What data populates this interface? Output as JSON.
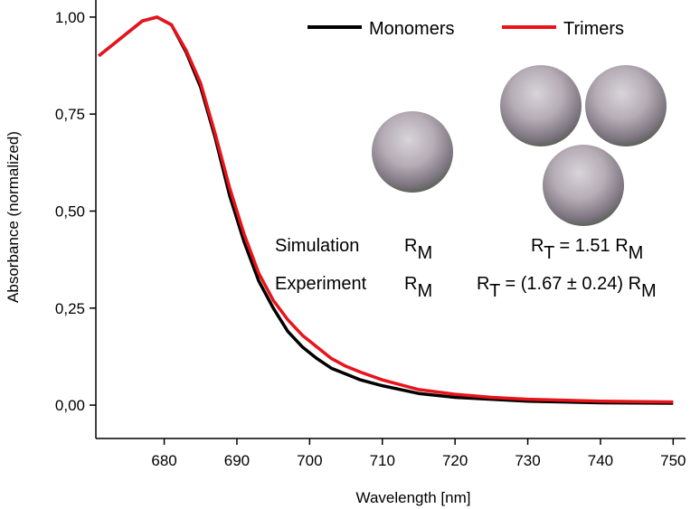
{
  "chart_data": {
    "type": "line",
    "x_label": "Wavelength [nm]",
    "y_label": "Absorbance (normalized)",
    "xlim": [
      670.6,
      751.7
    ],
    "xticks": [
      680,
      690,
      700,
      710,
      720,
      730,
      740,
      750
    ],
    "ylim": [
      -0.086,
      1.044
    ],
    "yticks": [
      {
        "value": 0,
        "label": "0,00"
      },
      {
        "value": 0.25,
        "label": "0,25"
      },
      {
        "value": 0.5,
        "label": "0,50"
      },
      {
        "value": 0.75,
        "label": "0,75"
      },
      {
        "value": 1,
        "label": "1,00"
      }
    ],
    "legend": "top-right",
    "x": [
      671,
      673,
      675,
      677,
      679,
      681,
      683,
      685,
      687,
      689,
      691,
      693,
      695,
      697,
      699,
      701,
      703,
      705,
      707,
      710,
      715,
      720,
      725,
      730,
      740,
      750
    ],
    "series": [
      {
        "name": "Monomers",
        "color": "#000000",
        "values": [
          0.9,
          0.93,
          0.96,
          0.99,
          1.0,
          0.98,
          0.91,
          0.82,
          0.69,
          0.54,
          0.42,
          0.32,
          0.25,
          0.19,
          0.15,
          0.12,
          0.095,
          0.08,
          0.065,
          0.05,
          0.03,
          0.02,
          0.015,
          0.01,
          0.006,
          0.005
        ]
      },
      {
        "name": "Trimers",
        "color": "#e8141a",
        "values": [
          0.9,
          0.93,
          0.96,
          0.99,
          1.0,
          0.98,
          0.915,
          0.83,
          0.7,
          0.56,
          0.44,
          0.34,
          0.27,
          0.22,
          0.18,
          0.15,
          0.12,
          0.1,
          0.085,
          0.065,
          0.04,
          0.028,
          0.02,
          0.015,
          0.01,
          0.008
        ]
      }
    ],
    "annotations": [
      [
        {
          "text": "Simulation"
        }
      ],
      [
        {
          "text": "R"
        },
        {
          "sub": "M"
        }
      ],
      [
        {
          "text": "R"
        },
        {
          "sub": "T"
        },
        {
          "text": " = 1.51 R"
        },
        {
          "sub": "M"
        }
      ],
      [
        {
          "text": "Experiment"
        }
      ],
      [
        {
          "text": "R"
        },
        {
          "sub": "M"
        }
      ],
      [
        {
          "text": "R"
        },
        {
          "sub": "T"
        },
        {
          "text": " = (1.67 ± 0.24) R"
        },
        {
          "sub": "M"
        }
      ]
    ]
  }
}
